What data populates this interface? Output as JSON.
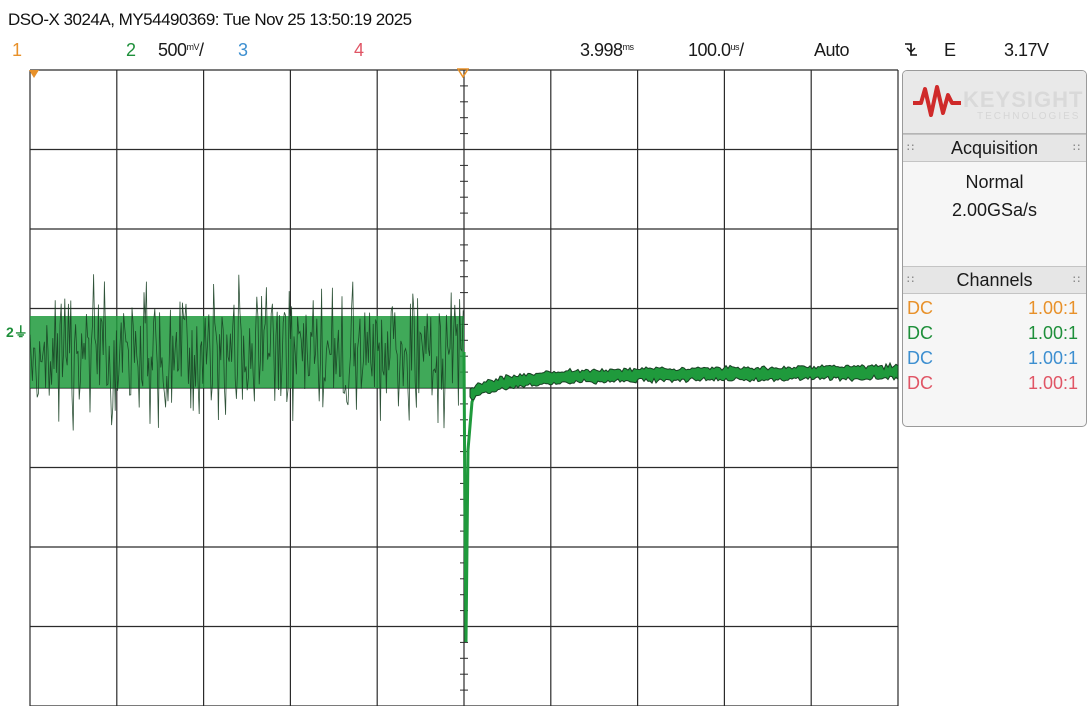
{
  "title": "DSO-X 3024A, MY54490369: Tue Nov 25 13:50:19 2025",
  "header": {
    "ch1": {
      "label": "1",
      "color": "#e8912a"
    },
    "ch2": {
      "label": "2",
      "color": "#1e8f3a",
      "scale_value": "500",
      "scale_unit": "mV",
      "scale_suffix": "/"
    },
    "ch3": {
      "label": "3",
      "color": "#3d8fd0"
    },
    "ch4": {
      "label": "4",
      "color": "#e05565"
    },
    "delay_value": "3.998",
    "delay_unit": "ms",
    "timebase_value": "100.0",
    "timebase_unit": "us",
    "timebase_suffix": "/",
    "trigger_mode": "Auto",
    "trigger_slope_icon": "falling-edge-icon",
    "trigger_source": "E",
    "trigger_level": "3.17V"
  },
  "ch2_marker": "2",
  "panel": {
    "logo_text": "KEYSIGHT",
    "logo_sub": "TECHNOLOGIES",
    "acquisition": {
      "title": "Acquisition",
      "mode": "Normal",
      "rate": "2.00GSa/s"
    },
    "channels_title": "Channels",
    "channels": [
      {
        "coupling": "DC",
        "probe": "1.00:1",
        "color": "#e8912a"
      },
      {
        "coupling": "DC",
        "probe": "1.00:1",
        "color": "#1e8f3a"
      },
      {
        "coupling": "DC",
        "probe": "1.00:1",
        "color": "#3d8fd0"
      },
      {
        "coupling": "DC",
        "probe": "1.00:1",
        "color": "#e05565"
      }
    ]
  },
  "colors": {
    "grid": "#2b2b2b",
    "trace": "#1f9a3c",
    "trace_dark": "#173f22"
  }
}
